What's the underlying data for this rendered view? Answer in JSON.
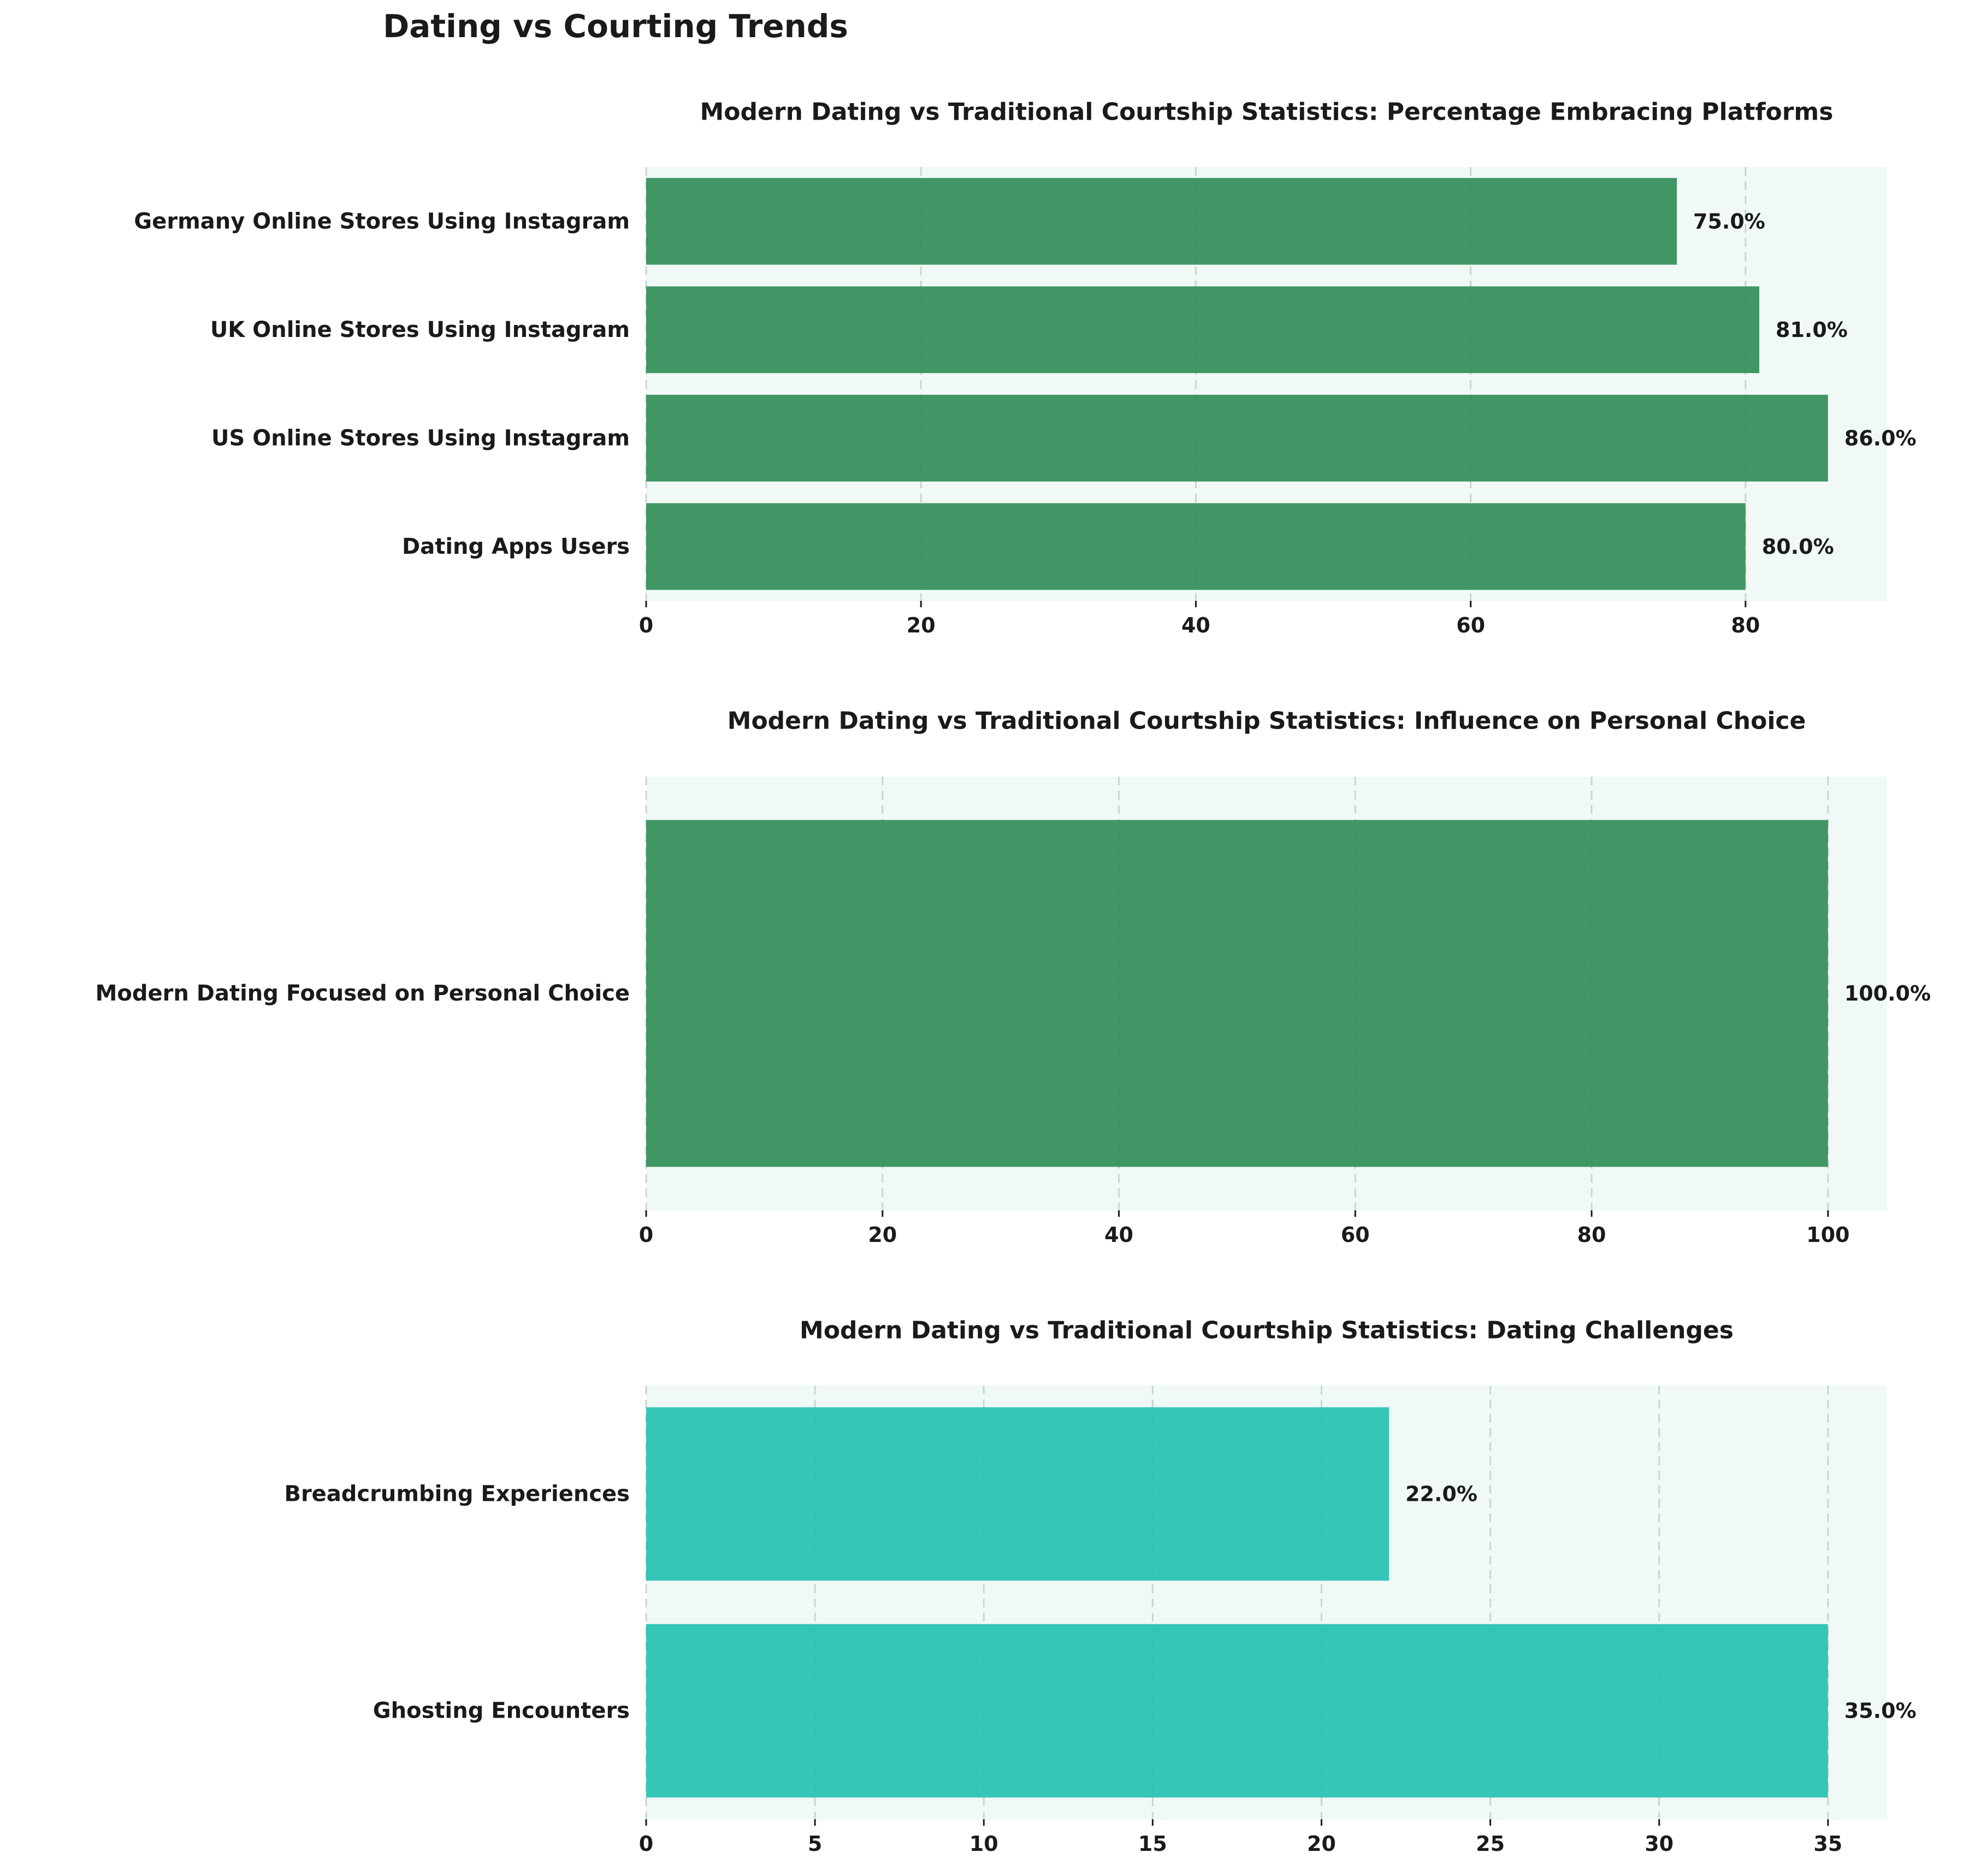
{
  "figure": {
    "suptitle": "Dating vs Courting Trends"
  },
  "chart_data": [
    {
      "type": "bar",
      "orientation": "horizontal",
      "title": "Modern Dating vs Traditional Courtship Statistics: Percentage Embracing Platforms",
      "xlabel": "",
      "ylabel": "",
      "categories": [
        "Dating Apps Users",
        "US Online Stores Using Instagram",
        "UK Online Stores Using Instagram",
        "Germany Online Stores Using Instagram"
      ],
      "values": [
        80.0,
        86.0,
        81.0,
        75.0
      ],
      "data_labels": [
        "80.0%",
        "86.0%",
        "81.0%",
        "75.0%"
      ],
      "xlim": [
        0,
        90.3
      ],
      "xticks": [
        0,
        20,
        40,
        60,
        80
      ],
      "xtick_labels": [
        "0",
        "20",
        "40",
        "60",
        "80"
      ],
      "grid": "x, dashed",
      "bar_color": "#2e8b57",
      "background_color": "#f0f9f5",
      "legend": "none"
    },
    {
      "type": "bar",
      "orientation": "horizontal",
      "title": "Modern Dating vs Traditional Courtship Statistics: Influence on Personal Choice",
      "xlabel": "",
      "ylabel": "",
      "categories": [
        "Modern Dating Focused on Personal Choice"
      ],
      "values": [
        100.0
      ],
      "data_labels": [
        "100.0%"
      ],
      "xlim": [
        0,
        105
      ],
      "xticks": [
        0,
        20,
        40,
        60,
        80,
        100
      ],
      "xtick_labels": [
        "0",
        "20",
        "40",
        "60",
        "80",
        "100"
      ],
      "grid": "x, dashed",
      "bar_color": "#2e8b57",
      "background_color": "#f0f9f5",
      "legend": "none"
    },
    {
      "type": "bar",
      "orientation": "horizontal",
      "title": "Modern Dating vs Traditional Courtship Statistics: Dating Challenges",
      "xlabel": "",
      "ylabel": "",
      "categories": [
        "Ghosting Encounters",
        "Breadcrumbing Experiences"
      ],
      "values": [
        35.0,
        22.0
      ],
      "data_labels": [
        "35.0%",
        "22.0%"
      ],
      "xlim": [
        0,
        36.75
      ],
      "xticks": [
        0,
        5,
        10,
        15,
        20,
        25,
        30,
        35
      ],
      "xtick_labels": [
        "0",
        "5",
        "10",
        "15",
        "20",
        "25",
        "30",
        "35"
      ],
      "grid": "x, dashed",
      "bar_color": "#20c0b0",
      "background_color": "#f0f9f5",
      "legend": "none"
    }
  ]
}
